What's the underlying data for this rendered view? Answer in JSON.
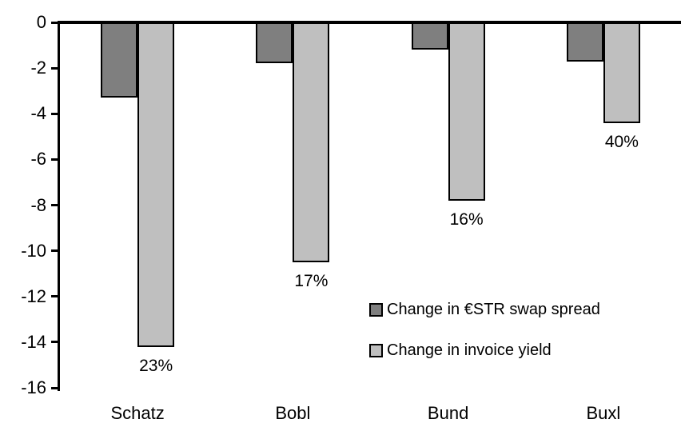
{
  "chart_data": {
    "type": "bar",
    "title": "",
    "xlabel": "",
    "ylabel": "",
    "categories": [
      "Schatz",
      "Bobl",
      "Bund",
      "Buxl"
    ],
    "series": [
      {
        "name": "Change in €STR swap spread",
        "color": "#7f7f7f",
        "values": [
          -3.3,
          -1.8,
          -1.2,
          -1.7
        ]
      },
      {
        "name": "Change in invoice yield",
        "color": "#bfbfbf",
        "values": [
          -14.2,
          -10.5,
          -7.8,
          -4.4
        ]
      }
    ],
    "bar_labels": [
      "23%",
      "17%",
      "16%",
      "40%"
    ],
    "bar_labels_on_series": "Change in invoice yield",
    "ylim": [
      -16,
      0
    ],
    "yticks": [
      "0",
      "-2",
      "-4",
      "-6",
      "-8",
      "-10",
      "-12",
      "-14",
      "-16"
    ],
    "ytick_values": [
      0,
      -2,
      -4,
      -6,
      -8,
      -10,
      -12,
      -14,
      -16
    ],
    "grid": false,
    "legend_position": "inside-right",
    "axis_color": "#000000",
    "bar_border_color": "#000000",
    "background_color": "#ffffff"
  }
}
